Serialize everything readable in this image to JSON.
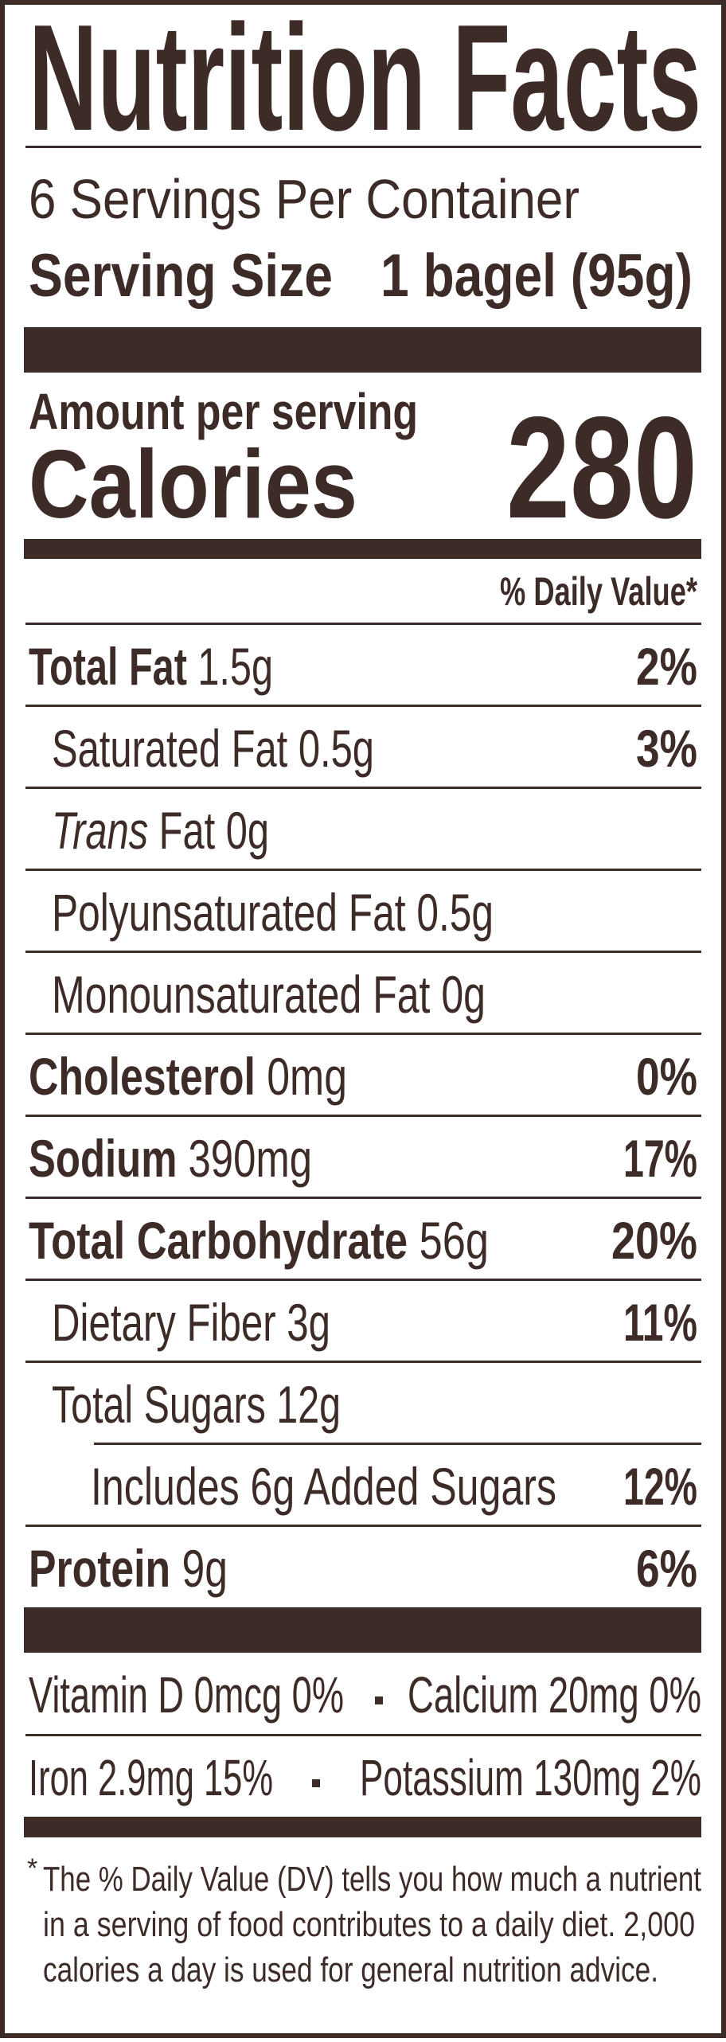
{
  "header": {
    "title": "Nutrition Facts",
    "servings": "6 Servings Per Container",
    "serving_size_label": "Serving Size",
    "serving_size_value": "1 bagel (95g)"
  },
  "calories": {
    "amount_label": "Amount per serving",
    "label": "Calories",
    "value": "280"
  },
  "daily_value_header": "% Daily Value*",
  "rows": [
    {
      "name": "Total Fat",
      "amount": "1.5g",
      "dv": "2%"
    },
    {
      "name": "Saturated Fat",
      "amount": "0.5g",
      "dv": "3%"
    },
    {
      "prefix": "Trans",
      "name": "Fat",
      "amount": "0g"
    },
    {
      "name": "Polyunsaturated Fat",
      "amount": "0.5g"
    },
    {
      "name": "Monounsaturated Fat",
      "amount": "0g"
    },
    {
      "name": "Cholesterol",
      "amount": "0mg",
      "dv": "0%"
    },
    {
      "name": "Sodium",
      "amount": "390mg",
      "dv": "17%"
    },
    {
      "name": "Total Carbohydrate",
      "amount": "56g",
      "dv": "20%"
    },
    {
      "name": "Dietary Fiber",
      "amount": "3g",
      "dv": "11%"
    },
    {
      "name": "Total Sugars",
      "amount": "12g"
    },
    {
      "name": "Includes 6g Added Sugars",
      "dv": "12%"
    },
    {
      "name": "Protein",
      "amount": "9g",
      "dv": "6%"
    }
  ],
  "vitamins": [
    [
      "Vitamin D 0mcg 0%",
      "Calcium 20mg 0%"
    ],
    [
      "Iron 2.9mg 15%",
      "Potassium 130mg 2%"
    ]
  ],
  "footnote": {
    "marker": "*",
    "lines": [
      "The % Daily Value (DV) tells you how much a nutrient",
      "in a serving of food contributes to a daily diet. 2,000",
      "calories a day is used for general nutrition advice."
    ]
  }
}
